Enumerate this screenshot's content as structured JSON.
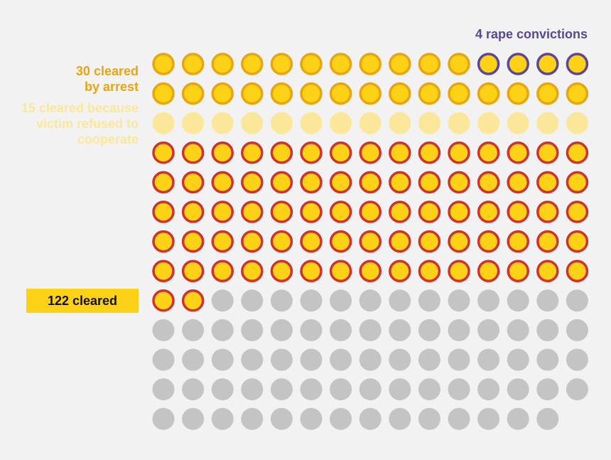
{
  "colors": {
    "background": "#f2f2f2",
    "arrest_fill": "#fcd116",
    "arrest_ring": "#e8a512",
    "conviction_ring": "#5b4796",
    "refused_fill": "#fbe79a",
    "cleared_ring": "#d0312d",
    "uncleared_fill": "#c4c4c4",
    "cleared_box": "#fcd116",
    "arrest_text": "#e8a512",
    "refused_text": "#fbe79a",
    "conviction_text": "#5b4796"
  },
  "labels": {
    "convictions": "4 rape convictions",
    "arrest_line1": "30 cleared",
    "arrest_line2": "by arrest",
    "refused_line1": "15 cleared because",
    "refused_line2": "victim refused to",
    "refused_line3": "cooperate",
    "cleared": "122 cleared"
  },
  "chart_data": {
    "type": "waffle",
    "title": "",
    "columns": 15,
    "groups": [
      {
        "label": "4 rape convictions",
        "count": 4,
        "style": "conviction"
      },
      {
        "label": "30 cleared by arrest",
        "count": 26,
        "style": "arrest"
      },
      {
        "label": "15 cleared because victim refused to cooperate",
        "count": 15,
        "style": "refused"
      },
      {
        "label": "122 cleared",
        "count": 77,
        "style": "cleared"
      },
      {
        "label": "",
        "count": 72,
        "style": "uncleared"
      }
    ],
    "fill_order": [
      "arrest",
      "conviction",
      "refused",
      "cleared",
      "uncleared"
    ]
  }
}
